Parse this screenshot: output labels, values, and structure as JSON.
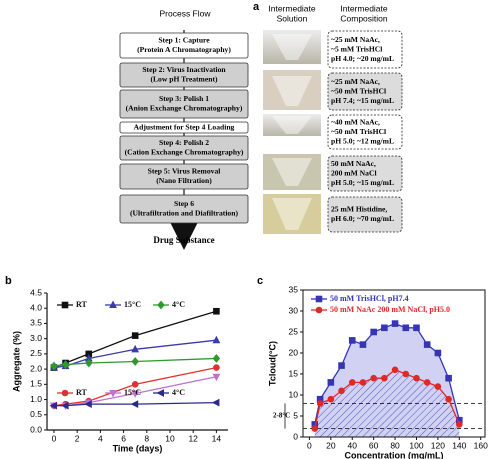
{
  "diagram": {
    "label": "a",
    "headers": [
      [
        "Process Flow"
      ],
      [
        "Intermediate",
        "Solution"
      ],
      [
        "Intermediate",
        "Composition"
      ]
    ],
    "steps": [
      {
        "lines": [
          "Step 1: Capture",
          "(Protein A Chromatography)"
        ],
        "shaded": false
      },
      {
        "lines": [
          "Step 2: Virus Inactivation",
          "(Low pH Treatment)"
        ],
        "shaded": true
      },
      {
        "lines": [
          "Step 3: Polish 1",
          "(Anion Exchange Chromatography)"
        ],
        "shaded": true
      },
      {
        "lines": [
          "Adjustment for  Step 4 Loading"
        ],
        "shaded": false
      },
      {
        "lines": [
          "Step 4: Polish 2",
          "(Cation Exchange Chromatography)"
        ],
        "shaded": true
      },
      {
        "lines": [
          "Step 5: Virus Removal",
          "(Nano Filtration)"
        ],
        "shaded": true
      },
      {
        "lines": [
          "Step 6",
          "(Ultrafiltration  and Diafiltration)"
        ],
        "shaded": true
      }
    ],
    "compositions": [
      {
        "lines": [
          "~25 mM NaAc,",
          "~5 mM TrisHCl",
          "pH 4.0; ~20 mg/mL"
        ],
        "shaded": false
      },
      {
        "lines": [
          "~25 mM NaAc,",
          "~50 mM TrisHCl",
          "pH 7.4; ~15 mg/mL"
        ],
        "shaded": true
      },
      {
        "lines": [
          "~40 mM NaAc,",
          "~50 mM TrisHCl",
          "pH 5.0; ~12 mg/mL"
        ],
        "shaded": false
      },
      {
        "lines": [
          "50 mM NaAc,",
          "200 mM NaCl",
          "pH 5.0; ~15 mg/mL"
        ],
        "shaded": true
      },
      {
        "lines": [
          "25 mM Histidine,",
          "pH 6.0; ~70 mg/mL"
        ],
        "shaded": true
      }
    ],
    "output": "Drug Substance"
  },
  "chart_data": [
    {
      "type": "line",
      "panel_label": "b",
      "xlabel": "Time (days)",
      "ylabel": "Aggregate (%)",
      "xlim": [
        -0.6,
        15
      ],
      "ylim": [
        0,
        4.5
      ],
      "frame": false,
      "xticks": [
        0,
        2,
        4,
        6,
        8,
        10,
        12,
        14
      ],
      "yticks": [
        {
          "value": 0,
          "label": "0.0"
        },
        0.5,
        {
          "value": 1,
          "label": "1.0"
        },
        1.5,
        {
          "value": 2,
          "label": "2.0"
        },
        2.5,
        {
          "value": 3,
          "label": "3.0"
        },
        3.5,
        {
          "value": 4,
          "label": "4.0"
        },
        4.5
      ],
      "x": [
        0,
        1,
        3,
        7,
        14
      ],
      "series": [
        {
          "name": "RT",
          "color": "#111111",
          "marker": "square",
          "values": [
            2.05,
            2.2,
            2.5,
            3.1,
            3.9
          ]
        },
        {
          "name": "15°C",
          "color": "#3a3aa8",
          "marker": "triangle",
          "values": [
            2.05,
            2.1,
            2.35,
            2.65,
            2.95
          ]
        },
        {
          "name": "4°C",
          "color": "#2e9a2e",
          "marker": "diamond",
          "values": [
            2.1,
            2.15,
            2.2,
            2.25,
            2.35
          ]
        },
        {
          "name": "RT",
          "color": "#e03030",
          "marker": "circle",
          "values": [
            0.8,
            0.85,
            0.95,
            1.5,
            2.05
          ]
        },
        {
          "name": "15°C",
          "color": "#c070d0",
          "marker": "triangle-down",
          "values": [
            0.8,
            0.8,
            0.9,
            1.2,
            1.75
          ]
        },
        {
          "name": "4°C",
          "color": "#2a2a8a",
          "marker": "triangle-left",
          "values": [
            0.8,
            0.8,
            0.85,
            0.85,
            0.9
          ]
        }
      ]
    },
    {
      "type": "line",
      "panel_label": "c",
      "xlabel": "Concentration (mg/mL)",
      "ylabel": "Tcloud(°C)",
      "xlim": [
        -6,
        164
      ],
      "ylim": [
        0,
        35
      ],
      "frame": true,
      "xticks": [
        0,
        20,
        40,
        60,
        80,
        100,
        120,
        140,
        160
      ],
      "yticks": [
        0,
        5,
        10,
        15,
        20,
        25,
        30,
        35
      ],
      "hlines": [
        2,
        8
      ],
      "annotation": "2-8°C",
      "x": [
        5,
        10,
        20,
        30,
        40,
        50,
        60,
        70,
        80,
        90,
        100,
        110,
        120,
        130,
        140
      ],
      "series": [
        {
          "name": "50 mM TrisHCl, pH7.4",
          "color": "#3535b5",
          "marker": "square",
          "area": "solid",
          "values": [
            3,
            9,
            13,
            17,
            23,
            22,
            25,
            26,
            27,
            26,
            26,
            22,
            20,
            14,
            4
          ]
        },
        {
          "name": "50 mM NaAc 200 mM NaCl, pH5.0",
          "color": "#e02828",
          "marker": "circle",
          "area": "hatch",
          "values": [
            2,
            8,
            9,
            11,
            13,
            13,
            14,
            14,
            16,
            15,
            14,
            13,
            12,
            9,
            3
          ]
        }
      ]
    }
  ]
}
